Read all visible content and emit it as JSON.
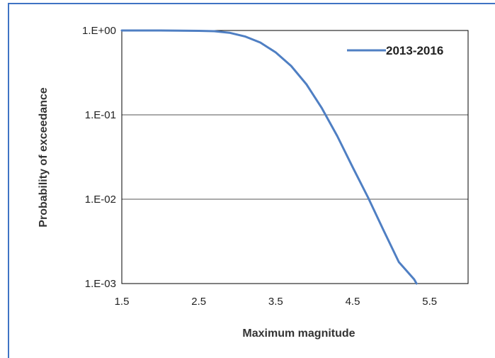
{
  "chart_data": {
    "type": "line",
    "title": "",
    "xlabel": "Maximum magnitude",
    "ylabel": "Probability of exceedance",
    "xlim": [
      1.5,
      6.0
    ],
    "ylim": [
      0.001,
      1
    ],
    "y_scale": "log",
    "x_ticks": [
      1.5,
      2.5,
      3.5,
      4.5,
      5.5
    ],
    "x_tick_labels": [
      "1.5",
      "2.5",
      "3.5",
      "4.5",
      "5.5"
    ],
    "y_ticks": [
      1,
      0.1,
      0.01,
      0.001
    ],
    "y_tick_labels": [
      "1.E+00",
      "1.E-01",
      "1.E-02",
      "1.E-03"
    ],
    "grid": "horizontal",
    "legend_position": "top-right",
    "line_color": "#4f7fc3",
    "series": [
      {
        "name": "2013-2016",
        "x": [
          1.5,
          2.0,
          2.5,
          2.7,
          2.9,
          3.1,
          3.3,
          3.5,
          3.7,
          3.9,
          4.1,
          4.3,
          4.5,
          4.7,
          4.9,
          5.1,
          5.3,
          5.33
        ],
        "y": [
          1.0,
          1.0,
          0.99,
          0.98,
          0.94,
          0.85,
          0.72,
          0.55,
          0.38,
          0.23,
          0.12,
          0.056,
          0.024,
          0.0105,
          0.0043,
          0.0018,
          0.00112,
          0.001
        ]
      }
    ]
  }
}
